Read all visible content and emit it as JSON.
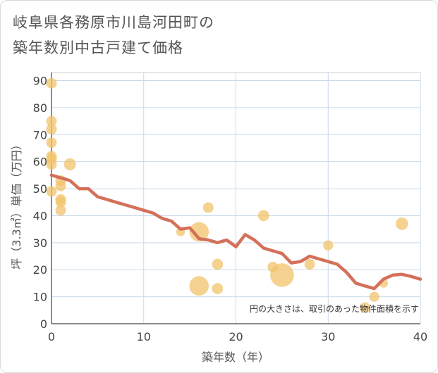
{
  "title_line1": "岐阜県各務原市川島河田町の",
  "title_line2": "築年数別中古戸建て価格",
  "chart_data": {
    "type": "scatter",
    "title": "岐阜県各務原市川島河田町の築年数別中古戸建て価格",
    "xlabel": "築年数（年）",
    "ylabel": "坪（3.3㎡）単価（万円）",
    "xlim": [
      0,
      40
    ],
    "ylim": [
      0,
      93
    ],
    "xticks": [
      0,
      10,
      20,
      30,
      40
    ],
    "yticks": [
      0,
      10,
      20,
      30,
      40,
      50,
      60,
      70,
      80,
      90
    ],
    "grid": true,
    "note": "円の大きさは、取引のあった物件面積を示す",
    "bubble_color": "#f2c36b",
    "line_color": "#d4705a",
    "points": [
      {
        "x": 0,
        "y": 89,
        "size": 1
      },
      {
        "x": 0,
        "y": 75,
        "size": 1
      },
      {
        "x": 0,
        "y": 72,
        "size": 1
      },
      {
        "x": 0,
        "y": 67,
        "size": 1
      },
      {
        "x": 0,
        "y": 62,
        "size": 1
      },
      {
        "x": 0,
        "y": 61,
        "size": 1
      },
      {
        "x": 0,
        "y": 59,
        "size": 1
      },
      {
        "x": 0,
        "y": 49,
        "size": 1
      },
      {
        "x": 1,
        "y": 53,
        "size": 1
      },
      {
        "x": 1,
        "y": 51,
        "size": 1
      },
      {
        "x": 1,
        "y": 46,
        "size": 1
      },
      {
        "x": 1,
        "y": 45,
        "size": 1
      },
      {
        "x": 1,
        "y": 42,
        "size": 1
      },
      {
        "x": 2,
        "y": 59,
        "size": 1.3
      },
      {
        "x": 14,
        "y": 34,
        "size": 0.7
      },
      {
        "x": 16,
        "y": 34,
        "size": 3.4
      },
      {
        "x": 16,
        "y": 14,
        "size": 3.4
      },
      {
        "x": 17,
        "y": 43,
        "size": 1
      },
      {
        "x": 18,
        "y": 22,
        "size": 1.1
      },
      {
        "x": 18,
        "y": 13,
        "size": 1.1
      },
      {
        "x": 23,
        "y": 40,
        "size": 1.1
      },
      {
        "x": 24,
        "y": 21,
        "size": 1
      },
      {
        "x": 25,
        "y": 18,
        "size": 5
      },
      {
        "x": 28,
        "y": 22,
        "size": 1
      },
      {
        "x": 30,
        "y": 29,
        "size": 0.9
      },
      {
        "x": 34,
        "y": 6,
        "size": 1
      },
      {
        "x": 35,
        "y": 10,
        "size": 0.9
      },
      {
        "x": 36,
        "y": 15,
        "size": 0.7
      },
      {
        "x": 38,
        "y": 37,
        "size": 1.4
      }
    ],
    "trend": {
      "x": [
        0,
        1,
        2,
        3,
        4,
        5,
        6,
        7,
        8,
        9,
        10,
        11,
        12,
        13,
        14,
        15,
        16,
        17,
        18,
        19,
        20,
        21,
        22,
        23,
        24,
        25,
        26,
        27,
        28,
        29,
        30,
        31,
        32,
        33,
        34,
        35,
        36,
        37,
        38,
        39,
        40
      ],
      "y": [
        55,
        54,
        53,
        50,
        50,
        47,
        46,
        45,
        44,
        43,
        42,
        41,
        39,
        38,
        35,
        35.5,
        31.5,
        31,
        30,
        31,
        28.5,
        33,
        31,
        28,
        27,
        26,
        22.5,
        23,
        25,
        24,
        23,
        22,
        19,
        15,
        14,
        13,
        16.5,
        18,
        18.3,
        17.5,
        16.5
      ]
    }
  }
}
